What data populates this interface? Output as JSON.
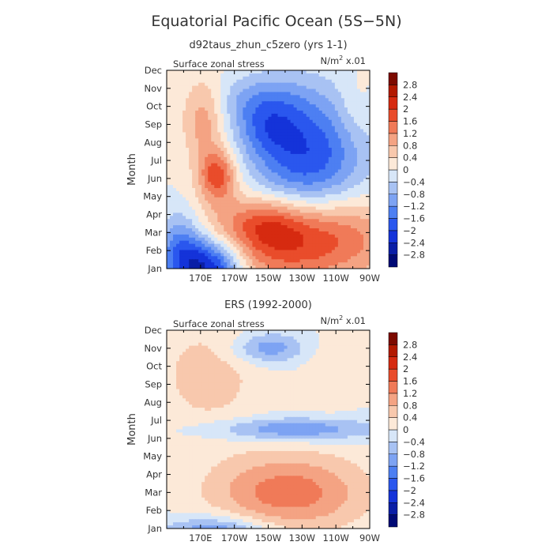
{
  "figure": {
    "title": "Equatorial Pacific Ocean (5S−5N)"
  },
  "colorbar": {
    "levels": [
      -2.8,
      -2.4,
      -2,
      -1.6,
      -1.2,
      -0.8,
      -0.4,
      0,
      0.4,
      0.8,
      1.2,
      1.6,
      2,
      2.4,
      2.8
    ],
    "level_labels": [
      "−2.8",
      "−2.4",
      "−2",
      "−1.6",
      "−1.2",
      "−0.8",
      "−0.4",
      "0",
      "0.4",
      "0.8",
      "1.2",
      "1.6",
      "2",
      "2.4",
      "2.8"
    ],
    "colors": [
      "#000a75",
      "#0a1ea6",
      "#1433d9",
      "#2a57ee",
      "#4d7ff2",
      "#7da3f3",
      "#a8c2f3",
      "#d7e6f8",
      "#fce9d8",
      "#f8c8ad",
      "#f4a383",
      "#f07a58",
      "#e94c2b",
      "#d62a10",
      "#b21900",
      "#7c0a00"
    ]
  },
  "chart_data": [
    {
      "type": "heatmap",
      "subtitle": "d92taus_zhun_c5zero (yrs 1-1)",
      "title": "Surface zonal stress",
      "units": "N/m² x.01",
      "units_base": "N/m",
      "units_sup": "2",
      "units_rest": " x.01",
      "ylabel": "Month",
      "xlabel": "",
      "x_range_lon": [
        150,
        270
      ],
      "xticks": [
        "170E",
        "170W",
        "150W",
        "130W",
        "110W",
        "90W"
      ],
      "xtick_lons": [
        170,
        190,
        210,
        230,
        250,
        270
      ],
      "yticks": [
        "Jan",
        "Feb",
        "Mar",
        "Apr",
        "May",
        "Jun",
        "Jul",
        "Aug",
        "Sep",
        "Oct",
        "Nov",
        "Dec"
      ],
      "features": [
        {
          "lon": 176,
          "m": 1.1,
          "slon": 14,
          "sm": 1.2,
          "amp": -2.7
        },
        {
          "lon": 158,
          "m": 2.2,
          "slon": 10,
          "sm": 1.5,
          "amp": -1.6
        },
        {
          "lon": 225,
          "m": 2.7,
          "slon": 40,
          "sm": 1.7,
          "amp": 2.3
        },
        {
          "lon": 210,
          "m": 3.6,
          "slon": 14,
          "sm": 0.9,
          "amp": 0.6
        },
        {
          "lon": 180,
          "m": 6.2,
          "slon": 8,
          "sm": 1.0,
          "amp": 1.8
        },
        {
          "lon": 172,
          "m": 9.3,
          "slon": 9,
          "sm": 1.6,
          "amp": 1.1
        },
        {
          "lon": 232,
          "m": 7.2,
          "slon": 24,
          "sm": 2.5,
          "amp": -2.0
        },
        {
          "lon": 210,
          "m": 8.6,
          "slon": 12,
          "sm": 0.9,
          "amp": -0.7
        },
        {
          "lon": 205,
          "m": 10.2,
          "slon": 18,
          "sm": 1.0,
          "amp": -0.9
        },
        {
          "lon": 262,
          "m": 10.0,
          "slon": 8,
          "sm": 1.5,
          "amp": 0.35
        }
      ]
    },
    {
      "type": "heatmap",
      "subtitle": "ERS (1992-2000)",
      "title": "Surface zonal stress",
      "units": "N/m² x.01",
      "units_base": "N/m",
      "units_sup": "2",
      "units_rest": " x.01",
      "ylabel": "Month",
      "xlabel": "",
      "x_range_lon": [
        150,
        270
      ],
      "xticks": [
        "170E",
        "170W",
        "150W",
        "130W",
        "110W",
        "90W"
      ],
      "xtick_lons": [
        170,
        190,
        210,
        230,
        250,
        270
      ],
      "yticks": [
        "Jan",
        "Feb",
        "Mar",
        "Apr",
        "May",
        "Jun",
        "Jul",
        "Aug",
        "Sep",
        "Oct",
        "Nov",
        "Dec"
      ],
      "features": [
        {
          "lon": 180,
          "m": 0.6,
          "slon": 22,
          "sm": 0.7,
          "amp": -1.5
        },
        {
          "lon": 222,
          "m": 3.0,
          "slon": 32,
          "sm": 1.5,
          "amp": 1.45
        },
        {
          "lon": 175,
          "m": 9.5,
          "slon": 22,
          "sm": 2.2,
          "amp": 0.6
        },
        {
          "lon": 225,
          "m": 6.5,
          "slon": 35,
          "sm": 0.45,
          "amp": -1.2
        },
        {
          "lon": 210,
          "m": 11.0,
          "slon": 15,
          "sm": 0.6,
          "amp": -1.1
        },
        {
          "lon": 245,
          "m": 9.5,
          "slon": 10,
          "sm": 1.3,
          "amp": 0.35
        }
      ]
    }
  ]
}
